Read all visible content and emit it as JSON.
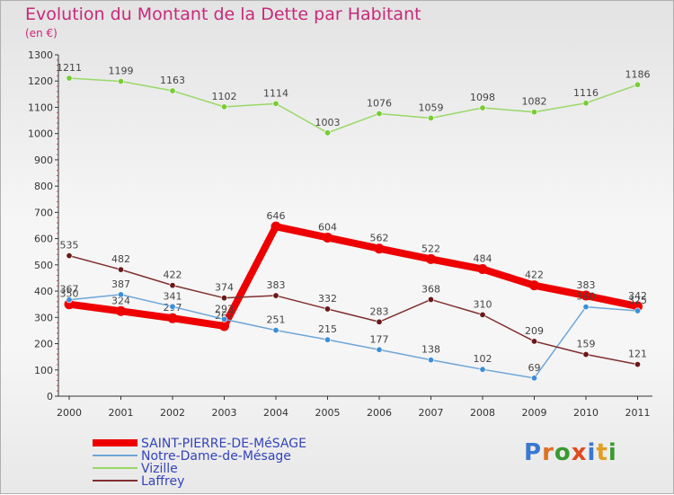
{
  "title": "Evolution du Montant de la Dette par Habitant",
  "unit": "(en €)",
  "logo": {
    "text": "Proxiti",
    "letter_colors": [
      "#3a78d0",
      "#e07020",
      "#3a9a30",
      "#e04a20",
      "#3a78d0",
      "#e0a020",
      "#3a9a30"
    ]
  },
  "chart_data": {
    "type": "line",
    "x": [
      "2000",
      "2001",
      "2002",
      "2003",
      "2004",
      "2005",
      "2006",
      "2007",
      "2008",
      "2009",
      "2010",
      "2011"
    ],
    "ylim": [
      0,
      1300
    ],
    "yticks": [
      0,
      100,
      200,
      300,
      400,
      500,
      600,
      700,
      800,
      900,
      1000,
      1100,
      1200,
      1300
    ],
    "grid": false,
    "legend_position": "bottom-left",
    "series": [
      {
        "name": "SAINT-PIERRE-DE-MéSAGE",
        "color": "#ee0000",
        "marker": "#ee0000",
        "thick": true,
        "values": [
          350,
          324,
          297,
          267,
          646,
          604,
          562,
          522,
          484,
          422,
          383,
          342
        ],
        "labels": [
          "350",
          "324",
          "297",
          "267",
          "646",
          "604",
          "562",
          "522",
          "484",
          "422",
          "383",
          "342"
        ]
      },
      {
        "name": "Notre-Dame-de-Mésage",
        "color": "#6ea6d8",
        "marker": "#3d8ed8",
        "thick": false,
        "values": [
          367,
          387,
          341,
          293,
          251,
          215,
          177,
          138,
          102,
          69,
          340,
          325
        ],
        "labels": [
          "367",
          "387",
          "341",
          "293",
          "251",
          "215",
          "177",
          "138",
          "102",
          "69",
          "340",
          "325"
        ]
      },
      {
        "name": "Vizille",
        "color": "#99d866",
        "marker": "#77cc33",
        "thick": false,
        "values": [
          1211,
          1199,
          1163,
          1102,
          1114,
          1003,
          1076,
          1059,
          1098,
          1082,
          1116,
          1186
        ],
        "labels": [
          "1211",
          "1199",
          "1163",
          "1102",
          "1114",
          "1003",
          "1076",
          "1059",
          "1098",
          "1082",
          "1116",
          "1186"
        ]
      },
      {
        "name": "Laffrey",
        "color": "#803030",
        "marker": "#6b1818",
        "thick": false,
        "values": [
          535,
          482,
          422,
          374,
          383,
          332,
          283,
          368,
          310,
          209,
          159,
          121
        ],
        "labels": [
          "535",
          "482",
          "422",
          "374",
          "383",
          "332",
          "283",
          "368",
          "310",
          "209",
          "159",
          "121"
        ]
      }
    ]
  }
}
